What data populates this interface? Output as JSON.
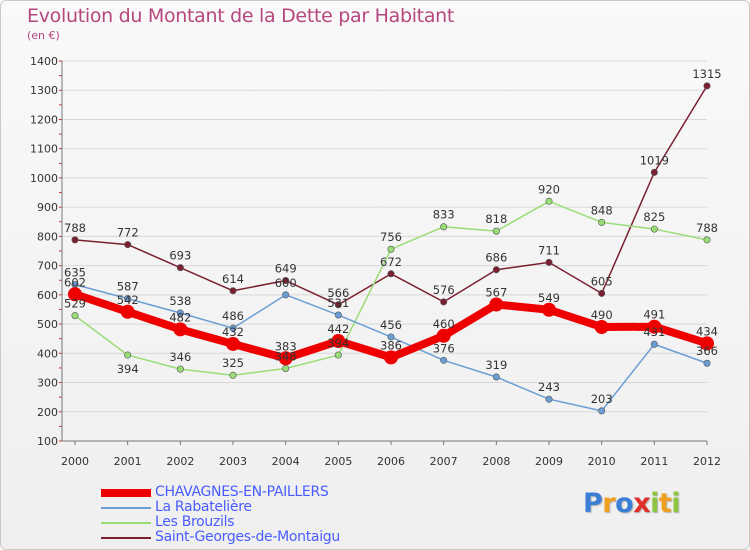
{
  "header": {
    "title": "Evolution du Montant de la Dette par Habitant",
    "unit": "(en €)"
  },
  "logo": {
    "text": "Proxiti",
    "letters": [
      {
        "ch": "P",
        "color": "#3a7fd5"
      },
      {
        "ch": "r",
        "color": "#f0a020"
      },
      {
        "ch": "o",
        "color": "#3a7fd5"
      },
      {
        "ch": "x",
        "color": "#e0302a"
      },
      {
        "ch": "i",
        "color": "#8cc63e"
      },
      {
        "ch": "t",
        "color": "#f0a020"
      },
      {
        "ch": "i",
        "color": "#8cc63e"
      }
    ]
  },
  "chart_data": {
    "type": "line",
    "title": "Evolution du Montant de la Dette par Habitant",
    "subtitle": "(en €)",
    "xlabel": "",
    "ylabel": "",
    "x": [
      "2000",
      "2001",
      "2002",
      "2003",
      "2004",
      "2005",
      "2006",
      "2007",
      "2008",
      "2009",
      "2010",
      "2011",
      "2012"
    ],
    "ylim": [
      100,
      1400
    ],
    "yticks": [
      100,
      200,
      300,
      400,
      500,
      600,
      700,
      800,
      900,
      1000,
      1100,
      1200,
      1300,
      1400
    ],
    "grid": "horizontal",
    "legend_position": "bottom-left",
    "series": [
      {
        "name": "CHAVAGNES-EN-PAILLERS",
        "color": "#ee0000",
        "width": 8,
        "marker": 7,
        "values": [
          602,
          542,
          482,
          432,
          383,
          442,
          386,
          460,
          567,
          549,
          490,
          491,
          434
        ]
      },
      {
        "name": "La Rabatelière",
        "color": "#6b9ed4",
        "width": 1.5,
        "marker": 3.2,
        "values": [
          635,
          587,
          538,
          486,
          600,
          531,
          456,
          376,
          319,
          243,
          203,
          431,
          366
        ]
      },
      {
        "name": "Les Brouzils",
        "color": "#99dd77",
        "width": 1.5,
        "marker": 3.2,
        "values": [
          529,
          394,
          346,
          325,
          348,
          394,
          756,
          833,
          818,
          920,
          848,
          825,
          788
        ]
      },
      {
        "name": "Saint-Georges-de-Montaigu",
        "color": "#7a2030",
        "width": 1.5,
        "marker": 3.2,
        "values": [
          788,
          772,
          693,
          614,
          649,
          566,
          672,
          576,
          686,
          711,
          605,
          1019,
          1315
        ]
      }
    ],
    "data_labels": [
      {
        "series": 1,
        "i": 0,
        "text": "635",
        "pos": "above"
      },
      {
        "series": 0,
        "i": 0,
        "text": "602",
        "pos": "above"
      },
      {
        "series": 2,
        "i": 0,
        "text": "529",
        "pos": "above"
      },
      {
        "series": 3,
        "i": 0,
        "text": "788",
        "pos": "above"
      },
      {
        "series": 1,
        "i": 1,
        "text": "587",
        "pos": "above"
      },
      {
        "series": 0,
        "i": 1,
        "text": "542",
        "pos": "above"
      },
      {
        "series": 2,
        "i": 1,
        "text": "394",
        "pos": "below"
      },
      {
        "series": 3,
        "i": 1,
        "text": "772",
        "pos": "above"
      },
      {
        "series": 1,
        "i": 2,
        "text": "538",
        "pos": "above"
      },
      {
        "series": 0,
        "i": 2,
        "text": "482",
        "pos": "above"
      },
      {
        "series": 2,
        "i": 2,
        "text": "346",
        "pos": "above"
      },
      {
        "series": 3,
        "i": 2,
        "text": "693",
        "pos": "above"
      },
      {
        "series": 1,
        "i": 3,
        "text": "486",
        "pos": "above"
      },
      {
        "series": 0,
        "i": 3,
        "text": "432",
        "pos": "above"
      },
      {
        "series": 2,
        "i": 3,
        "text": "325",
        "pos": "above"
      },
      {
        "series": 3,
        "i": 3,
        "text": "614",
        "pos": "above"
      },
      {
        "series": 1,
        "i": 4,
        "text": "600",
        "pos": "above"
      },
      {
        "series": 0,
        "i": 4,
        "text": "383",
        "pos": "above"
      },
      {
        "series": 2,
        "i": 4,
        "text": "348",
        "pos": "above"
      },
      {
        "series": 3,
        "i": 4,
        "text": "649",
        "pos": "above"
      },
      {
        "series": 1,
        "i": 5,
        "text": "531",
        "pos": "above"
      },
      {
        "series": 0,
        "i": 5,
        "text": "442",
        "pos": "above"
      },
      {
        "series": 2,
        "i": 5,
        "text": "394",
        "pos": "above"
      },
      {
        "series": 3,
        "i": 5,
        "text": "566",
        "pos": "above"
      },
      {
        "series": 1,
        "i": 6,
        "text": "456",
        "pos": "above"
      },
      {
        "series": 0,
        "i": 6,
        "text": "386",
        "pos": "above"
      },
      {
        "series": 2,
        "i": 6,
        "text": "756",
        "pos": "above"
      },
      {
        "series": 3,
        "i": 6,
        "text": "672",
        "pos": "above"
      },
      {
        "series": 1,
        "i": 7,
        "text": "376",
        "pos": "above"
      },
      {
        "series": 0,
        "i": 7,
        "text": "460",
        "pos": "above"
      },
      {
        "series": 2,
        "i": 7,
        "text": "833",
        "pos": "above"
      },
      {
        "series": 3,
        "i": 7,
        "text": "576",
        "pos": "above"
      },
      {
        "series": 1,
        "i": 8,
        "text": "319",
        "pos": "above"
      },
      {
        "series": 0,
        "i": 8,
        "text": "567",
        "pos": "above"
      },
      {
        "series": 2,
        "i": 8,
        "text": "818",
        "pos": "above"
      },
      {
        "series": 3,
        "i": 8,
        "text": "686",
        "pos": "above"
      },
      {
        "series": 1,
        "i": 9,
        "text": "243",
        "pos": "above"
      },
      {
        "series": 0,
        "i": 9,
        "text": "549",
        "pos": "above"
      },
      {
        "series": 2,
        "i": 9,
        "text": "920",
        "pos": "above"
      },
      {
        "series": 3,
        "i": 9,
        "text": "711",
        "pos": "above"
      },
      {
        "series": 1,
        "i": 10,
        "text": "203",
        "pos": "above"
      },
      {
        "series": 0,
        "i": 10,
        "text": "490",
        "pos": "above"
      },
      {
        "series": 2,
        "i": 10,
        "text": "848",
        "pos": "above"
      },
      {
        "series": 3,
        "i": 10,
        "text": "605",
        "pos": "above"
      },
      {
        "series": 1,
        "i": 11,
        "text": "431",
        "pos": "above"
      },
      {
        "series": 0,
        "i": 11,
        "text": "491",
        "pos": "above"
      },
      {
        "series": 2,
        "i": 11,
        "text": "825",
        "pos": "above"
      },
      {
        "series": 3,
        "i": 11,
        "text": "1019",
        "pos": "above"
      },
      {
        "series": 1,
        "i": 12,
        "text": "366",
        "pos": "above"
      },
      {
        "series": 0,
        "i": 12,
        "text": "434",
        "pos": "above"
      },
      {
        "series": 2,
        "i": 12,
        "text": "788",
        "pos": "above"
      },
      {
        "series": 3,
        "i": 12,
        "text": "1315",
        "pos": "above"
      }
    ]
  }
}
